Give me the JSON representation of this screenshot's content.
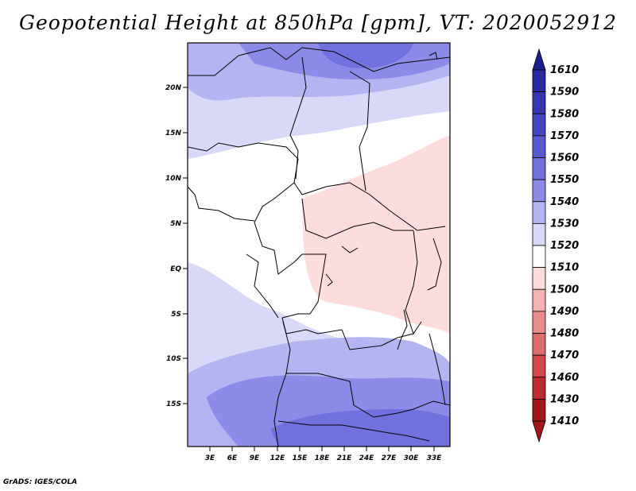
{
  "title": "Geopotential Height at 850hPa [gpm], VT: 2020052912",
  "credit": "GrADS: IGES/COLA",
  "map": {
    "lat_ticks": [
      "20N",
      "15N",
      "10N",
      "5N",
      "EQ",
      "5S",
      "10S",
      "15S"
    ],
    "lon_ticks": [
      "3E",
      "6E",
      "9E",
      "12E",
      "15E",
      "18E",
      "21E",
      "24E",
      "27E",
      "30E",
      "33E"
    ]
  },
  "colorbar": {
    "levels": [
      "1610",
      "1590",
      "1580",
      "1570",
      "1560",
      "1550",
      "1540",
      "1530",
      "1520",
      "1510",
      "1500",
      "1490",
      "1480",
      "1470",
      "1460",
      "1430",
      "1410"
    ],
    "colors": [
      "#1c1c8c",
      "#2a2aa0",
      "#3636b0",
      "#4646c0",
      "#5a5ad0",
      "#7070de",
      "#8c8ce8",
      "#b4b4f0",
      "#d8d8f8",
      "#ffffff",
      "#fcdcdc",
      "#f4b4b4",
      "#e88c8c",
      "#de6c6c",
      "#d04848",
      "#bc2c2c",
      "#a01818"
    ]
  }
}
